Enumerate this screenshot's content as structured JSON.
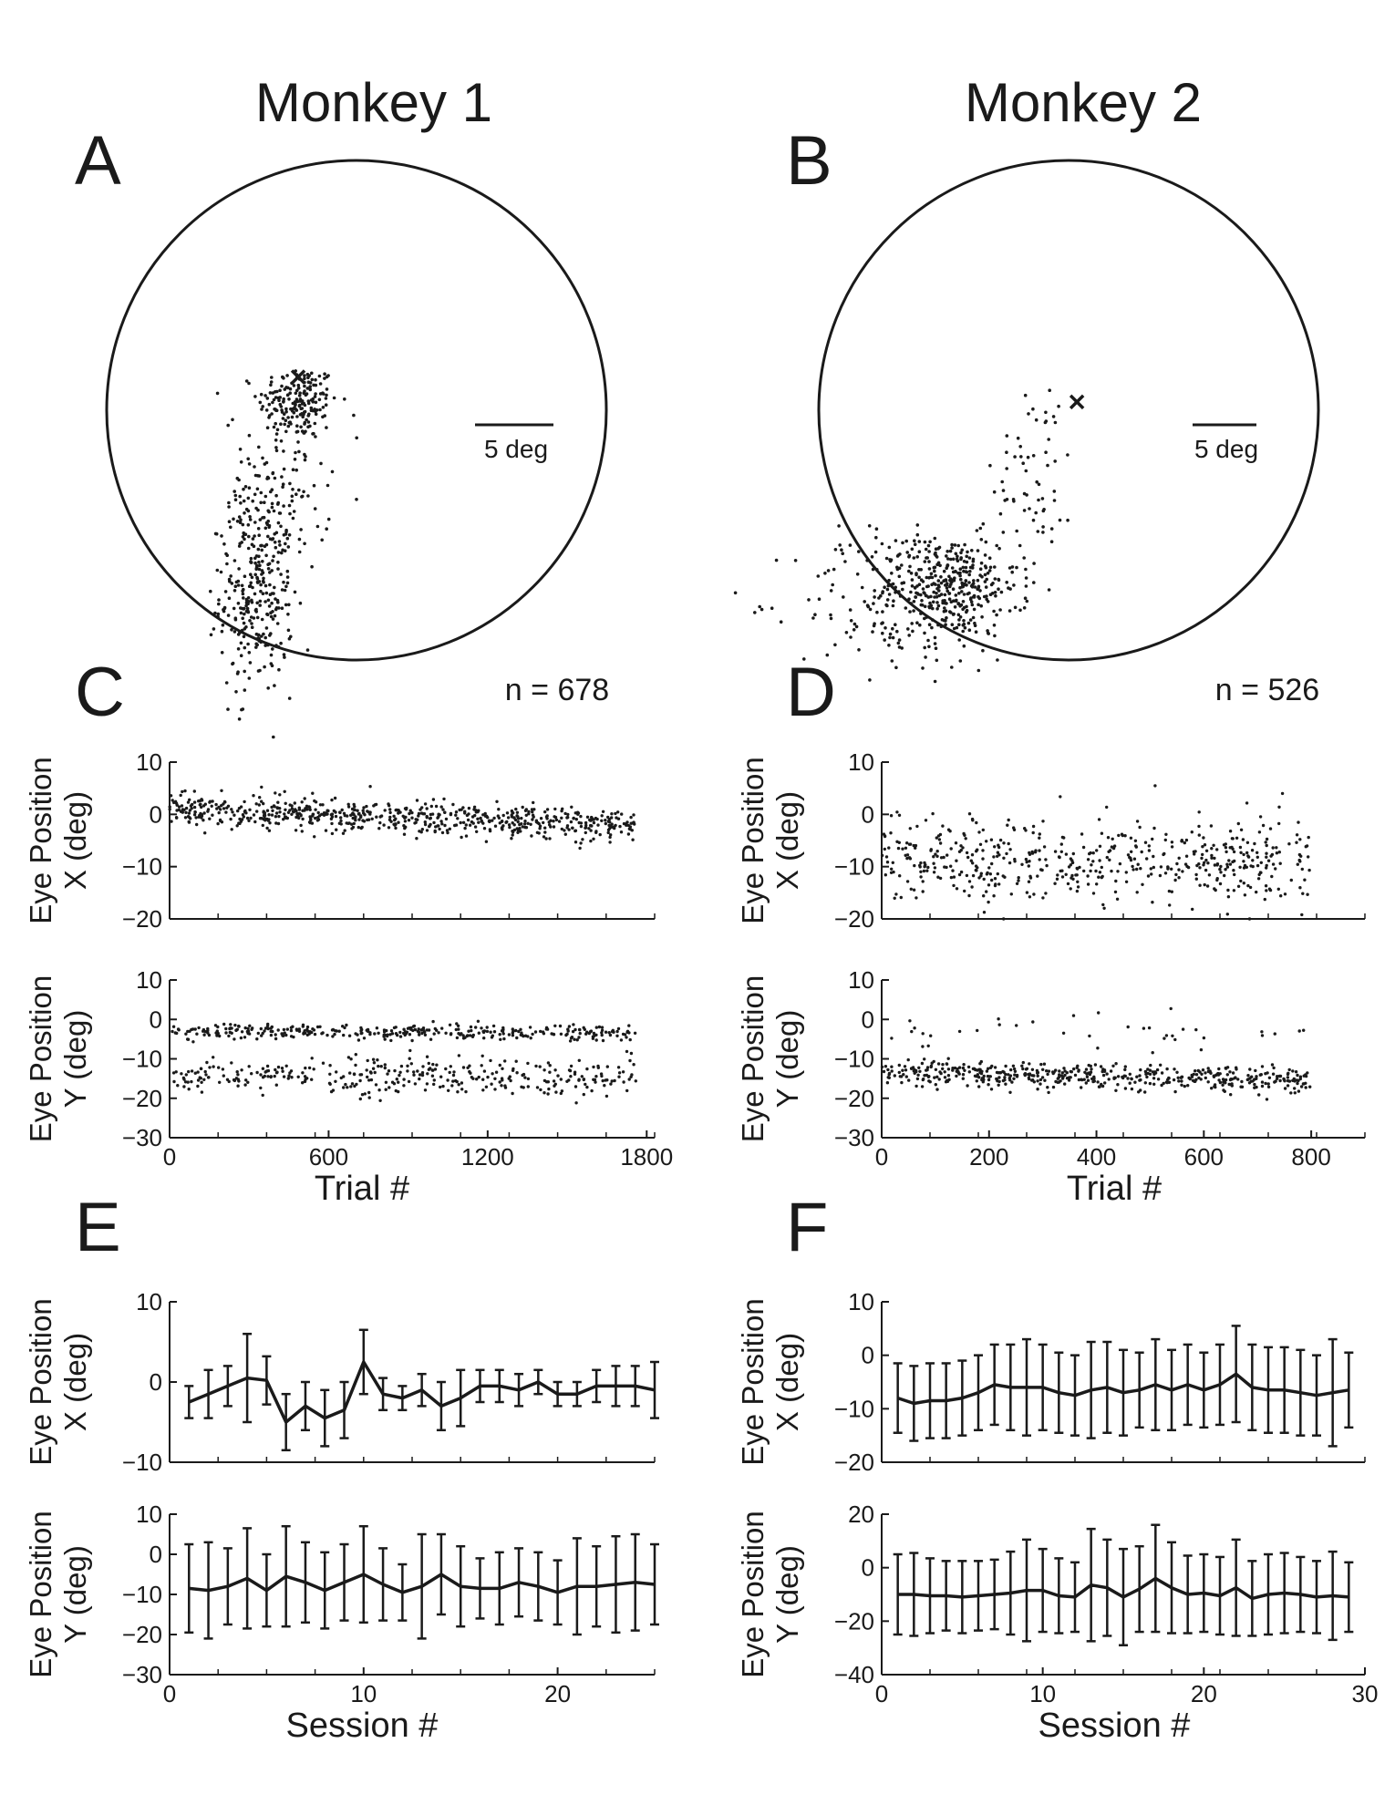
{
  "columns": [
    "Monkey 1",
    "Monkey 2"
  ],
  "panels": {
    "A": {
      "letter": "A",
      "scale_label": "5 deg"
    },
    "B": {
      "letter": "B",
      "scale_label": "5 deg"
    },
    "C": {
      "letter": "C",
      "count_label": "n = 678"
    },
    "D": {
      "letter": "D",
      "count_label": "n = 526"
    },
    "E": {
      "letter": "E"
    },
    "F": {
      "letter": "F"
    }
  },
  "chart_data": [
    {
      "id": "A",
      "type": "scatter",
      "description_units": "deg",
      "clusters": [
        {
          "center": [
            -3.5,
            0.5
          ],
          "spread": [
            1.2,
            1.1
          ],
          "n": 190
        },
        {
          "center": [
            -6.0,
            -11.0
          ],
          "spread": [
            1.1,
            3.0
          ],
          "n": 300
        },
        {
          "center": [
            -4.8,
            -5.0
          ],
          "spread": [
            1.6,
            2.5
          ],
          "n": 120
        }
      ],
      "marker_x": [
        -3.5,
        2.0
      ],
      "scale_bar_deg": 5,
      "radius_deg": 15
    },
    {
      "id": "B",
      "type": "scatter",
      "description_units": "deg",
      "clusters": [
        {
          "center": [
            -7.0,
            -10.5
          ],
          "spread": [
            2.0,
            1.5
          ],
          "n": 330
        },
        {
          "center": [
            -10.0,
            -11.5
          ],
          "spread": [
            3.2,
            2.2
          ],
          "n": 170
        },
        {
          "center": [
            -2.0,
            -3.5
          ],
          "spread": [
            1.2,
            2.8
          ],
          "n": 60
        }
      ],
      "marker_x": [
        0.5,
        0.5
      ],
      "scale_bar_deg": 5,
      "radius_deg": 15
    },
    {
      "id": "C-X",
      "type": "scatter",
      "ylabel": [
        "Eye Position",
        "X (deg)"
      ],
      "xlim": [
        0,
        1830
      ],
      "ylim": [
        -20,
        10
      ],
      "yticks": [
        10,
        0,
        -10,
        -20
      ],
      "yticklabels": [
        "10",
        "0",
        "−10",
        "−20"
      ],
      "trial_range": [
        0,
        1760
      ],
      "n_points": 678,
      "bands": [
        {
          "y_start": 1.0,
          "y_end": -2.0,
          "sd": 1.5,
          "frac": 1.0
        }
      ]
    },
    {
      "id": "C-Y",
      "type": "scatter",
      "ylabel": [
        "Eye Position",
        "Y (deg)"
      ],
      "xlabel": "Trial #",
      "xlim": [
        0,
        1830
      ],
      "ylim": [
        -30,
        10
      ],
      "xticks": [
        0,
        600,
        1200,
        1800
      ],
      "xticklabels": [
        "0",
        "600",
        "1200",
        "1800"
      ],
      "yticks": [
        10,
        0,
        -10,
        -20,
        -30
      ],
      "yticklabels": [
        "10",
        "0",
        "−10",
        "−20",
        "−30"
      ],
      "trial_range": [
        0,
        1760
      ],
      "n_points": 678,
      "bands": [
        {
          "y_start": -3.0,
          "y_end": -3.5,
          "sd": 1.0,
          "frac": 0.5
        },
        {
          "y_start": -14.5,
          "y_end": -14.5,
          "sd": 2.3,
          "frac": 0.5
        }
      ]
    },
    {
      "id": "D-X",
      "type": "scatter",
      "ylabel": [
        "Eye Position",
        "X (deg)"
      ],
      "xlim": [
        0,
        900
      ],
      "ylim": [
        -20,
        10
      ],
      "yticks": [
        10,
        0,
        -10,
        -20
      ],
      "yticklabels": [
        "10",
        "0",
        "−10",
        "−20"
      ],
      "trial_range": [
        0,
        800
      ],
      "n_points": 526,
      "bands": [
        {
          "y_start": -9.0,
          "y_end": -9.0,
          "sd": 4.0,
          "frac": 1.0
        }
      ]
    },
    {
      "id": "D-Y",
      "type": "scatter",
      "ylabel": [
        "Eye Position",
        "Y (deg)"
      ],
      "xlabel": "Trial #",
      "xlim": [
        0,
        900
      ],
      "ylim": [
        -30,
        10
      ],
      "xticks": [
        0,
        200,
        400,
        600,
        800
      ],
      "xticklabels": [
        "0",
        "200",
        "400",
        "600",
        "800"
      ],
      "yticks": [
        10,
        0,
        -10,
        -20,
        -30
      ],
      "yticklabels": [
        "10",
        "0",
        "−10",
        "−20",
        "−30"
      ],
      "trial_range": [
        0,
        800
      ],
      "n_points": 526,
      "bands": [
        {
          "y_start": -13.5,
          "y_end": -15.5,
          "sd": 1.6,
          "frac": 0.93
        },
        {
          "y_start": -3.0,
          "y_end": -3.0,
          "sd": 3.0,
          "frac": 0.07
        }
      ]
    },
    {
      "id": "E-X",
      "type": "line",
      "ylabel": [
        "Eye Position",
        "X (deg)"
      ],
      "xlim": [
        0,
        25
      ],
      "ylim": [
        -10,
        10
      ],
      "yticks": [
        10,
        0,
        -10
      ],
      "yticklabels": [
        "10",
        "0",
        "−10"
      ],
      "x": [
        1,
        2,
        3,
        4,
        5,
        6,
        7,
        8,
        9,
        10,
        11,
        12,
        13,
        14,
        15,
        16,
        17,
        18,
        19,
        20,
        21,
        22,
        23,
        24,
        25
      ],
      "y": [
        -2.5,
        -1.5,
        -0.5,
        0.5,
        0.2,
        -5.0,
        -3.0,
        -4.5,
        -3.5,
        2.5,
        -1.5,
        -2.0,
        -1.0,
        -3.0,
        -2.0,
        -0.5,
        -0.5,
        -1.0,
        0.0,
        -1.5,
        -1.5,
        -0.5,
        -0.5,
        -0.5,
        -1.0
      ],
      "err": [
        2.0,
        3.0,
        2.5,
        5.5,
        3.0,
        3.5,
        3.0,
        3.5,
        3.5,
        4.0,
        2.0,
        1.5,
        2.0,
        3.0,
        3.5,
        2.0,
        2.0,
        2.0,
        1.5,
        1.5,
        1.5,
        2.0,
        2.5,
        2.5,
        3.5
      ]
    },
    {
      "id": "E-Y",
      "type": "line",
      "ylabel": [
        "Eye Position",
        "Y (deg)"
      ],
      "xlabel": "Session #",
      "xlim": [
        0,
        25
      ],
      "ylim": [
        -30,
        10
      ],
      "xticks": [
        0,
        10,
        20
      ],
      "xticklabels": [
        "0",
        "10",
        "20"
      ],
      "yticks": [
        10,
        0,
        -10,
        -20,
        -30
      ],
      "yticklabels": [
        "10",
        "0",
        "−10",
        "−20",
        "−30"
      ],
      "x": [
        1,
        2,
        3,
        4,
        5,
        6,
        7,
        8,
        9,
        10,
        11,
        12,
        13,
        14,
        15,
        16,
        17,
        18,
        19,
        20,
        21,
        22,
        23,
        24,
        25
      ],
      "y": [
        -8.5,
        -9.0,
        -8.0,
        -6.0,
        -9.0,
        -5.5,
        -7.0,
        -9.0,
        -7.0,
        -5.0,
        -7.5,
        -9.5,
        -8.0,
        -5.0,
        -8.0,
        -8.5,
        -8.5,
        -7.0,
        -8.0,
        -9.5,
        -8.0,
        -8.0,
        -7.5,
        -7.0,
        -7.5
      ],
      "err": [
        11.0,
        12.0,
        9.5,
        12.5,
        9.0,
        12.5,
        10.0,
        9.5,
        9.5,
        12.0,
        9.0,
        7.0,
        13.0,
        10.0,
        10.0,
        7.5,
        9.0,
        8.5,
        8.5,
        8.0,
        12.0,
        10.0,
        12.0,
        12.0,
        10.0
      ]
    },
    {
      "id": "F-X",
      "type": "line",
      "ylabel": [
        "Eye Position",
        "X (deg)"
      ],
      "xlim": [
        0,
        30
      ],
      "ylim": [
        -20,
        10
      ],
      "yticks": [
        10,
        0,
        -10,
        -20
      ],
      "yticklabels": [
        "10",
        "0",
        "−10",
        "−20"
      ],
      "x": [
        1,
        2,
        3,
        4,
        5,
        6,
        7,
        8,
        9,
        10,
        11,
        12,
        13,
        14,
        15,
        16,
        17,
        18,
        19,
        20,
        21,
        22,
        23,
        24,
        25,
        26,
        27,
        28,
        29
      ],
      "y": [
        -8.0,
        -9.0,
        -8.5,
        -8.5,
        -8.0,
        -7.0,
        -5.5,
        -6.0,
        -6.0,
        -6.0,
        -7.0,
        -7.5,
        -6.5,
        -6.0,
        -7.0,
        -6.5,
        -5.5,
        -6.5,
        -5.5,
        -6.5,
        -5.5,
        -3.5,
        -6.0,
        -6.5,
        -6.5,
        -7.0,
        -7.5,
        -7.0,
        -6.5
      ],
      "err": [
        6.5,
        7.0,
        7.0,
        7.0,
        7.0,
        7.0,
        7.5,
        8.0,
        9.0,
        8.0,
        7.5,
        7.5,
        9.0,
        8.5,
        8.0,
        7.0,
        8.5,
        7.5,
        7.5,
        7.0,
        7.5,
        9.0,
        8.0,
        8.0,
        8.0,
        8.0,
        7.5,
        10.0,
        7.0
      ]
    },
    {
      "id": "F-Y",
      "type": "line",
      "ylabel": [
        "Eye Position",
        "Y (deg)"
      ],
      "xlabel": "Session #",
      "xlim": [
        0,
        30
      ],
      "ylim": [
        -40,
        20
      ],
      "xticks": [
        0,
        10,
        20,
        30
      ],
      "xticklabels": [
        "0",
        "10",
        "20",
        "30"
      ],
      "yticks": [
        20,
        0,
        -20,
        -40
      ],
      "yticklabels": [
        "20",
        "0",
        "−20",
        "−40"
      ],
      "x": [
        1,
        2,
        3,
        4,
        5,
        6,
        7,
        8,
        9,
        10,
        11,
        12,
        13,
        14,
        15,
        16,
        17,
        18,
        19,
        20,
        21,
        22,
        23,
        24,
        25,
        26,
        27,
        28,
        29
      ],
      "y": [
        -10.0,
        -10.0,
        -10.5,
        -10.5,
        -11.0,
        -10.5,
        -10.0,
        -9.5,
        -8.5,
        -8.5,
        -10.5,
        -11.0,
        -6.5,
        -7.5,
        -11.0,
        -8.0,
        -4.0,
        -7.5,
        -10.0,
        -9.5,
        -10.5,
        -7.5,
        -11.5,
        -10.0,
        -9.5,
        -10.0,
        -11.0,
        -10.5,
        -11.0
      ],
      "err": [
        15.0,
        15.5,
        14.0,
        13.0,
        13.5,
        13.0,
        13.0,
        15.5,
        19.0,
        15.5,
        14.0,
        13.0,
        21.0,
        18.0,
        18.0,
        16.0,
        20.0,
        17.0,
        14.5,
        14.5,
        14.5,
        18.0,
        14.0,
        15.0,
        15.0,
        14.0,
        13.5,
        16.5,
        13.0
      ]
    }
  ]
}
